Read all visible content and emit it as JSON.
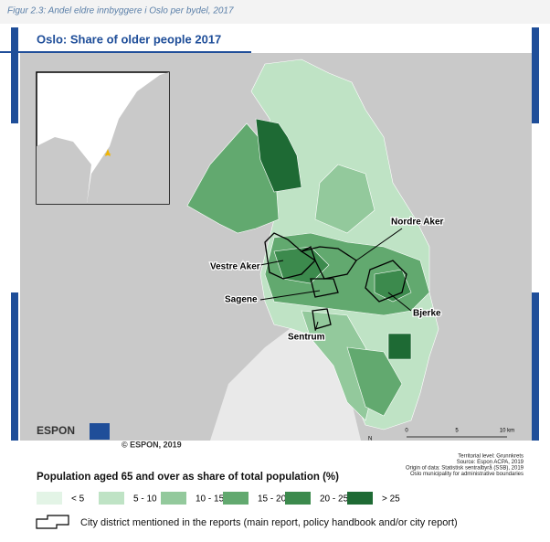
{
  "caption": "Figur 2.3: Andel eldre innbyggere i Oslo per bydel, 2017",
  "map": {
    "title": "Oslo: Share of older people 2017",
    "district_labels": [
      "Nordre Aker",
      "Vestre Aker",
      "Sagene",
      "Sentrum",
      "Bjerke"
    ],
    "scale_labels": [
      "0",
      "5",
      "10 km"
    ],
    "north": "N",
    "logo": "ESPON",
    "copyright": "© ESPON, 2019",
    "sources": [
      "Territorial level: Grunnkrets",
      "Source: Espon ACPA, 2019",
      "Origin of data: Statistisk sentralbyrå (SSB), 2019",
      "Oslo municipality for administrative boundaries"
    ]
  },
  "legend": {
    "title": "Population aged 65 and over as share of total population (%)",
    "items": [
      {
        "label": "< 5",
        "color": "#e3f4e6"
      },
      {
        "label": "5 - 10",
        "color": "#bfe3c5"
      },
      {
        "label": "10 - 15",
        "color": "#93c99c"
      },
      {
        "label": "15 - 20",
        "color": "#62a96f"
      },
      {
        "label": "20 - 25",
        "color": "#3c8a4d"
      },
      {
        "label": "> 25",
        "color": "#1e6a34"
      }
    ],
    "outline_note": "City district mentioned in the reports (main report, policy handbook and/or city report)"
  }
}
